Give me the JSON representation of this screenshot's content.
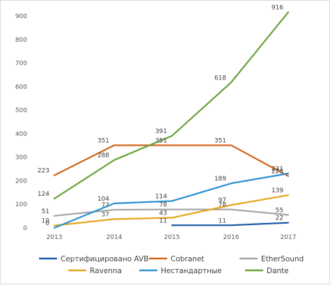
{
  "chart_data": {
    "type": "line",
    "x": [
      "2013",
      "2014",
      "2015",
      "2016",
      "2017"
    ],
    "ylim": [
      0,
      900
    ],
    "yticks": [
      0,
      100,
      200,
      300,
      400,
      500,
      600,
      700,
      800,
      900
    ],
    "grid": false,
    "legend_position": "bottom",
    "series": [
      {
        "name": "Сертифицировано  AVB",
        "color": "#1f5aa6",
        "values": [
          null,
          null,
          11,
          11,
          22
        ],
        "labels": [
          "",
          "",
          "11",
          "11",
          "22"
        ]
      },
      {
        "name": "Cobranet",
        "color": "#d0651b",
        "values": [
          223,
          351,
          351,
          351,
          220
        ],
        "labels": [
          "223",
          "351",
          "351",
          "351",
          "220"
        ]
      },
      {
        "name": "EtherSound",
        "color": "#a5a5a5",
        "values": [
          51,
          77,
          78,
          78,
          55
        ],
        "labels": [
          "51",
          "77",
          "78",
          "78",
          "55"
        ]
      },
      {
        "name": "Ravenna",
        "color": "#e5a51b",
        "values": [
          10,
          37,
          43,
          97,
          139
        ],
        "labels": [
          "10",
          "37",
          "43",
          "97",
          "139"
        ]
      },
      {
        "name": "Нестандартные",
        "color": "#2b8fd0",
        "values": [
          0,
          104,
          114,
          189,
          231
        ],
        "labels": [
          "0",
          "104",
          "114",
          "189",
          "231"
        ]
      },
      {
        "name": "Dante",
        "color": "#6aa23a",
        "values": [
          124,
          288,
          391,
          618,
          916
        ],
        "labels": [
          "124",
          "288",
          "391",
          "618",
          "916"
        ]
      }
    ]
  }
}
